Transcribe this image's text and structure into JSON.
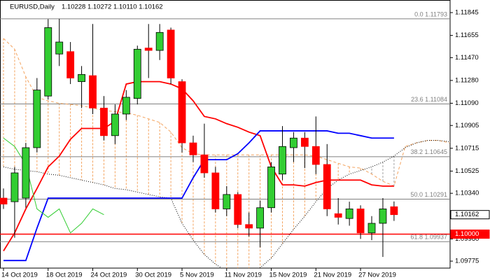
{
  "chart_data": {
    "type": "candlestick",
    "symbol": "EURUSD,Daily",
    "ohlc_text": "1.10228 1.10272 1.10110 1.10162",
    "categories": [
      "14 Oct 2019",
      null,
      null,
      null,
      "18 Oct 2019",
      null,
      null,
      null,
      "24 Oct 2019",
      null,
      null,
      null,
      "30 Oct 2019",
      null,
      null,
      null,
      "5 Nov 2019",
      null,
      null,
      null,
      "11 Nov 2019",
      null,
      null,
      null,
      "15 Nov 2019",
      null,
      null,
      null,
      "21 Nov 2019",
      null,
      null,
      null,
      "27 Nov 2019",
      null,
      null,
      null,
      null,
      null,
      null,
      null,
      null
    ],
    "open": [
      1.103,
      1.1027,
      1.103,
      1.1072,
      1.1115,
      1.115,
      1.1152,
      1.1127,
      1.1132,
      1.1105,
      1.1082,
      1.11,
      1.1113,
      1.1155,
      1.1153,
      1.117,
      1.1127,
      1.1076,
      1.1066,
      1.1051,
      1.1021,
      1.1033,
      1.1008,
      1.1005,
      1.1022,
      1.105,
      1.1072,
      1.108,
      1.1073,
      1.1058,
      1.1017,
      1.1013,
      1.1021,
      1.1001,
      1.1009,
      1.10228,
      null,
      null,
      null,
      null,
      null
    ],
    "high": [
      1.1038,
      1.1056,
      1.1076,
      1.113,
      1.1179,
      1.11793,
      1.116,
      1.114,
      1.1175,
      1.1115,
      1.1108,
      1.112,
      1.1157,
      1.1175,
      1.1175,
      1.1172,
      1.1129,
      1.1082,
      1.1092,
      1.1056,
      1.104,
      1.1035,
      1.1018,
      1.1028,
      1.106,
      1.109,
      1.1085,
      1.1085,
      1.1098,
      1.1075,
      1.103,
      1.1027,
      1.1024,
      1.1015,
      1.103,
      1.10272,
      null,
      null,
      null,
      null,
      null
    ],
    "low": [
      1.1021,
      1.0997,
      1.1022,
      1.1068,
      1.1112,
      1.114,
      1.1125,
      1.1105,
      1.11,
      1.1078,
      1.1075,
      1.1095,
      1.1108,
      1.113,
      1.1145,
      1.1125,
      1.1068,
      1.106,
      1.1047,
      1.1018,
      1.1015,
      1.1005,
      1.0998,
      1.0989,
      1.1018,
      1.1045,
      1.106,
      1.1055,
      1.105,
      1.1015,
      1.1008,
      1.1007,
      1.0996,
      1.0995,
      1.0981,
      1.1011,
      null,
      null,
      null,
      null,
      null
    ],
    "close": [
      1.1025,
      1.1051,
      1.1072,
      1.112,
      1.1172,
      1.116,
      1.113,
      1.1133,
      1.1105,
      1.1082,
      1.11,
      1.1114,
      1.1154,
      1.1153,
      1.1168,
      1.113,
      1.1076,
      1.1066,
      1.1051,
      1.1021,
      1.1033,
      1.1008,
      1.1005,
      1.1022,
      1.1056,
      1.1073,
      1.108,
      1.1073,
      1.1058,
      1.1021,
      1.1014,
      1.1021,
      1.1001,
      1.1009,
      1.1021,
      1.10162,
      null,
      null,
      null,
      null,
      null
    ],
    "up_color": "#32cd32",
    "down_color": "#ff0000",
    "series": [
      {
        "color": "#ff0000",
        "line_style": "solid",
        "values": [
          1.0986,
          1.1001,
          1.1021,
          1.1038,
          1.1056,
          1.1065,
          1.1079,
          1.1088,
          1.1088,
          1.1088,
          1.1094,
          1.1125,
          1.1127,
          1.1127,
          1.1127,
          1.1125,
          1.1121,
          1.1111,
          1.1098,
          1.1096,
          1.1092,
          1.1089,
          1.1085,
          1.1082,
          1.1056,
          1.1041,
          1.1041,
          1.104,
          1.1043,
          1.1045,
          1.1045,
          1.1045,
          1.1045,
          1.1041,
          1.104,
          1.104,
          null,
          null,
          null,
          null,
          null
        ]
      },
      {
        "color": "#0000ff",
        "line_style": "solid",
        "values": [
          1.0978,
          1.0978,
          1.0978,
          1.1005,
          1.103,
          1.103,
          1.103,
          1.103,
          1.103,
          1.103,
          1.103,
          1.103,
          1.103,
          1.103,
          1.103,
          1.103,
          1.103,
          1.1047,
          1.1062,
          1.1062,
          1.1062,
          1.1067,
          1.1076,
          1.1086,
          1.1086,
          1.1086,
          1.1086,
          1.1086,
          1.1086,
          1.1086,
          1.1084,
          1.1084,
          1.1082,
          1.108,
          1.108,
          1.108,
          null,
          null,
          null,
          null,
          null
        ]
      },
      {
        "color": "#32cd32",
        "line_style": "solid",
        "values": [
          1.108,
          1.1073,
          1.1058,
          1.1021,
          1.1014,
          1.1021,
          1.1001,
          1.1009,
          1.1021,
          1.10162,
          null,
          null,
          null,
          null,
          null,
          null,
          null,
          null,
          null,
          null,
          null,
          null,
          null,
          null,
          null,
          null,
          null,
          null,
          null,
          null,
          null,
          null,
          null,
          null,
          null,
          null,
          null,
          null,
          null,
          null,
          null
        ]
      }
    ],
    "cloud": {
      "up_color": "#f4a460",
      "down_color": "#a0a0a0",
      "span_a": {
        "color": "#f4a460",
        "line_style": "dashed",
        "values": [
          1.1163,
          1.1154,
          1.1131,
          1.1114,
          1.1111,
          1.1109,
          1.1108,
          1.1107,
          1.1105,
          1.1103,
          1.1102,
          1.1101,
          1.1099,
          1.1096,
          1.1093,
          1.1085,
          1.1072,
          1.1067,
          1.1066,
          1.1066,
          1.1066,
          1.1066,
          1.1066,
          1.1066,
          1.1066,
          1.1066,
          1.1066,
          1.1066,
          1.1065,
          1.1062,
          1.1059,
          1.1056,
          1.1055,
          1.105,
          1.1044,
          1.104,
          1.1073,
          1.1076,
          1.1078,
          1.1078,
          1.1076
        ]
      },
      "span_b": {
        "color": "#000000",
        "line_style": "dotted",
        "values": [
          1.1056,
          1.1054,
          1.1053,
          1.1052,
          1.105,
          1.1049,
          1.1047,
          1.1045,
          1.1043,
          1.1041,
          1.1038,
          1.1037,
          1.1035,
          1.1033,
          1.1031,
          1.103,
          1.1009,
          1.0995,
          1.0983,
          1.0975,
          1.0969,
          1.0969,
          1.0969,
          1.0972,
          1.098,
          1.0992,
          1.1004,
          1.1015,
          1.1027,
          1.1038,
          1.1045,
          1.105,
          1.1053,
          1.1056,
          1.106,
          1.1065,
          1.1072,
          1.1076,
          1.1078,
          1.1078,
          1.1077
        ]
      }
    },
    "levels": [
      {
        "value": 1.11793,
        "label": "0.0 1.11793"
      },
      {
        "value": 1.11084,
        "label": "23.6 1.11084"
      },
      {
        "value": 1.10645,
        "label": "38.2 1.10645"
      },
      {
        "value": 1.10291,
        "label": "50.0 1.10291"
      },
      {
        "value": 1.09937,
        "label": "61.8 1.09937"
      }
    ],
    "level_color": "#808080",
    "hline": {
      "value": 1.1,
      "label": "1.10000",
      "color": "#ff0000"
    },
    "bid": {
      "value": 1.10162,
      "label": "1.10162"
    },
    "ylim": [
      1.09717,
      1.1195
    ],
    "yticks": [
      1.11845,
      1.11655,
      {
        "value": 1.1147,
        "label": "1.11470"
      },
      {
        "value": 1.1128,
        "label": "1.11280"
      },
      {
        "value": 1.1109,
        "label": "1.11090"
      },
      1.10905,
      1.10715,
      1.10525,
      {
        "value": 1.1034,
        "label": "1.10340"
      },
      {
        "value": 1.0996,
        "label": "1.09960"
      },
      1.09775
    ]
  }
}
